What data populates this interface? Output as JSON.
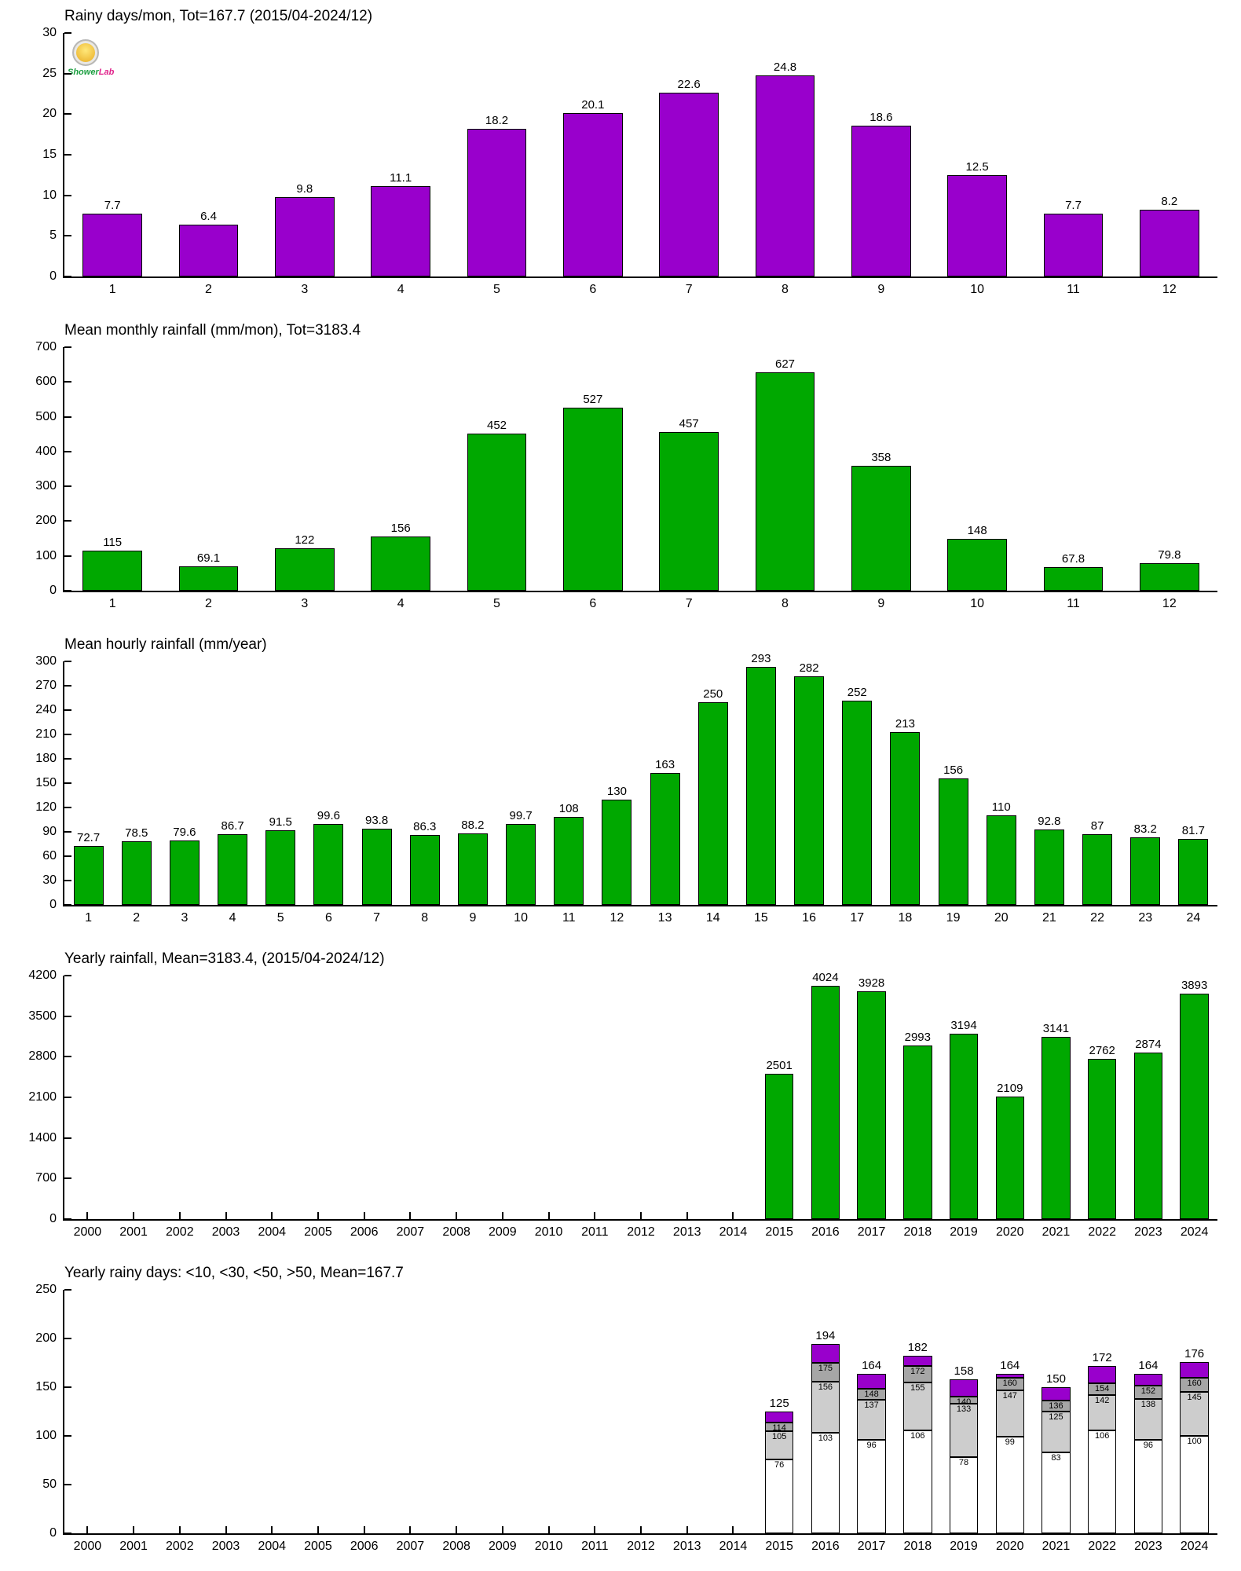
{
  "logo": {
    "text_a": "Shower",
    "text_b": "Lab"
  },
  "colors": {
    "purple": "#9900cc",
    "green": "#00a800",
    "gray_light": "#cdcdcd",
    "gray_dark": "#a6a6a6",
    "white": "#ffffff"
  },
  "charts": [
    {
      "title": "Rainy days/mon, Tot=167.7 (2015/04-2024/12)",
      "type": "bar",
      "bar_color": "#9900cc",
      "categories": [
        "1",
        "2",
        "3",
        "4",
        "5",
        "6",
        "7",
        "8",
        "9",
        "10",
        "11",
        "12"
      ],
      "values": [
        7.7,
        6.4,
        9.8,
        11.1,
        18.2,
        20.1,
        22.6,
        24.8,
        18.6,
        12.5,
        7.7,
        8.2
      ],
      "labels": [
        "7.7",
        "6.4",
        "9.8",
        "11.1",
        "18.2",
        "20.1",
        "22.6",
        "24.8",
        "18.6",
        "12.5",
        "7.7",
        "8.2"
      ],
      "ylim": [
        0,
        30
      ],
      "ytick_step": 5
    },
    {
      "title": "Mean monthly rainfall (mm/mon), Tot=3183.4",
      "type": "bar",
      "bar_color": "#00a800",
      "categories": [
        "1",
        "2",
        "3",
        "4",
        "5",
        "6",
        "7",
        "8",
        "9",
        "10",
        "11",
        "12"
      ],
      "values": [
        115,
        69.1,
        122,
        156,
        452,
        527,
        457,
        627,
        358,
        148,
        67.8,
        79.8
      ],
      "labels": [
        "115",
        "69.1",
        "122",
        "156",
        "452",
        "527",
        "457",
        "627",
        "358",
        "148",
        "67.8",
        "79.8"
      ],
      "ylim": [
        0,
        700
      ],
      "ytick_step": 100
    },
    {
      "title": "Mean hourly rainfall (mm/year)",
      "type": "bar",
      "bar_color": "#00a800",
      "categories": [
        "1",
        "2",
        "3",
        "4",
        "5",
        "6",
        "7",
        "8",
        "9",
        "10",
        "11",
        "12",
        "13",
        "14",
        "15",
        "16",
        "17",
        "18",
        "19",
        "20",
        "21",
        "22",
        "23",
        "24"
      ],
      "values": [
        72.7,
        78.5,
        79.6,
        86.7,
        91.5,
        99.6,
        93.8,
        86.3,
        88.2,
        99.7,
        108,
        130,
        163,
        250,
        293,
        282,
        252,
        213,
        156,
        110,
        92.8,
        87,
        83.2,
        81.7
      ],
      "labels": [
        "72.7",
        "78.5",
        "79.6",
        "86.7",
        "91.5",
        "99.6",
        "93.8",
        "86.3",
        "88.2",
        "99.7",
        "108",
        "130",
        "163",
        "250",
        "293",
        "282",
        "252",
        "213",
        "156",
        "110",
        "92.8",
        "87",
        "83.2",
        "81.7"
      ],
      "ylim": [
        0,
        300
      ],
      "ytick_step": 30
    },
    {
      "title": "Yearly rainfall, Mean=3183.4, (2015/04-2024/12)",
      "type": "bar",
      "bar_color": "#00a800",
      "categories": [
        "2000",
        "2001",
        "2002",
        "2003",
        "2004",
        "2005",
        "2006",
        "2007",
        "2008",
        "2009",
        "2010",
        "2011",
        "2012",
        "2013",
        "2014",
        "2015",
        "2016",
        "2017",
        "2018",
        "2019",
        "2020",
        "2021",
        "2022",
        "2023",
        "2024"
      ],
      "values": [
        null,
        null,
        null,
        null,
        null,
        null,
        null,
        null,
        null,
        null,
        null,
        null,
        null,
        null,
        null,
        2501,
        4024,
        3928,
        2993,
        3194,
        2109,
        3141,
        2762,
        2874,
        3893
      ],
      "labels": [
        "",
        "",
        "",
        "",
        "",
        "",
        "",
        "",
        "",
        "",
        "",
        "",
        "",
        "",
        "",
        "2501",
        "4024",
        "3928",
        "2993",
        "3194",
        "2109",
        "3141",
        "2762",
        "2874",
        "3893"
      ],
      "ylim": [
        0,
        4200
      ],
      "ytick_step": 700
    },
    {
      "title": "Yearly rainy days: <10, <30, <50, >50, Mean=167.7",
      "type": "stacked",
      "segment_colors": [
        "#ffffff",
        "#cdcdcd",
        "#a6a6a6",
        "#9900cc"
      ],
      "categories": [
        "2000",
        "2001",
        "2002",
        "2003",
        "2004",
        "2005",
        "2006",
        "2007",
        "2008",
        "2009",
        "2010",
        "2011",
        "2012",
        "2013",
        "2014",
        "2015",
        "2016",
        "2017",
        "2018",
        "2019",
        "2020",
        "2021",
        "2022",
        "2023",
        "2024"
      ],
      "values": [
        null,
        null,
        null,
        null,
        null,
        null,
        null,
        null,
        null,
        null,
        null,
        null,
        null,
        null,
        null,
        [
          76,
          105,
          114,
          125
        ],
        [
          103,
          156,
          175,
          194
        ],
        [
          96,
          137,
          148,
          164
        ],
        [
          106,
          155,
          172,
          182
        ],
        [
          78,
          133,
          140,
          158
        ],
        [
          99,
          147,
          160,
          164
        ],
        [
          83,
          125,
          136,
          150
        ],
        [
          106,
          142,
          154,
          172
        ],
        [
          96,
          138,
          152,
          164
        ],
        [
          100,
          145,
          160,
          176
        ]
      ],
      "ylim": [
        0,
        250
      ],
      "ytick_step": 50
    }
  ]
}
